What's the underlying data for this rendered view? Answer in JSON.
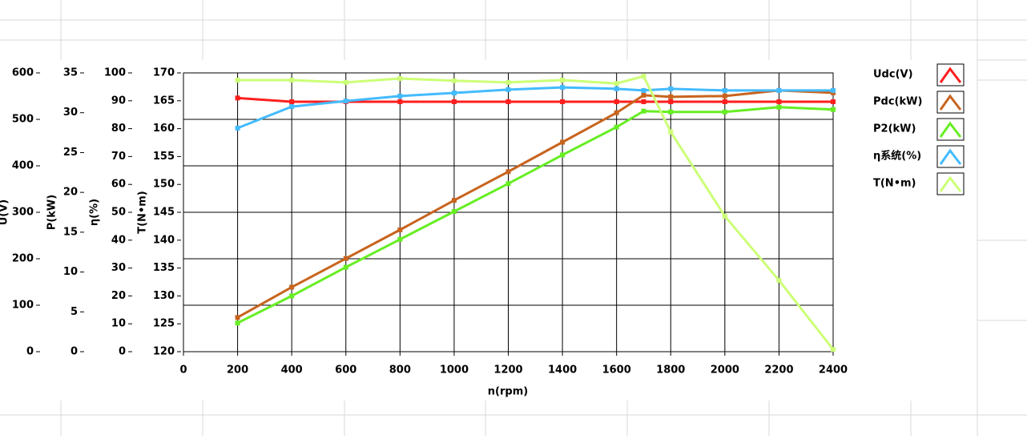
{
  "chart_data": {
    "type": "line",
    "x_label": "n(rpm)",
    "x": [
      200,
      400,
      600,
      800,
      1000,
      1200,
      1400,
      1600,
      1700,
      1800,
      2000,
      2200,
      2400
    ],
    "xlim": [
      0,
      2400
    ],
    "xticks": [
      0,
      200,
      400,
      600,
      800,
      1000,
      1200,
      1400,
      1600,
      1800,
      2000,
      2200,
      2400
    ],
    "y_axes": [
      {
        "label": "U(V)",
        "lim": [
          0,
          600
        ],
        "ticks": [
          0,
          100,
          200,
          300,
          400,
          500,
          600
        ]
      },
      {
        "label": "P(kW)",
        "lim": [
          0,
          35
        ],
        "ticks": [
          0,
          5,
          10,
          15,
          20,
          25,
          30,
          35
        ]
      },
      {
        "label": "η(%)",
        "lim": [
          0,
          100
        ],
        "ticks": [
          0,
          10,
          20,
          30,
          40,
          50,
          60,
          70,
          80,
          90,
          100
        ]
      },
      {
        "label": "T(N•m)",
        "lim": [
          120,
          170
        ],
        "ticks": [
          120,
          125,
          130,
          135,
          140,
          145,
          150,
          155,
          160,
          165,
          170
        ]
      }
    ],
    "grid": true,
    "series": [
      {
        "name": "Udc(V)",
        "color": "#ff1e1e",
        "axis": 0,
        "values": [
          546,
          538,
          538,
          538,
          538,
          538,
          538,
          538,
          538,
          538,
          538,
          538,
          538
        ]
      },
      {
        "name": "Pdc(kW)",
        "color": "#c8641e",
        "axis": 1,
        "values": [
          4.3,
          8.1,
          11.7,
          15.3,
          19.0,
          22.6,
          26.3,
          30.0,
          32.2,
          32.0,
          32.1,
          32.8,
          32.5
        ]
      },
      {
        "name": "P2(kW)",
        "color": "#66ee22",
        "axis": 1,
        "values": [
          3.6,
          7.0,
          10.6,
          14.1,
          17.6,
          21.1,
          24.7,
          28.2,
          30.2,
          30.1,
          30.1,
          30.7,
          30.4
        ]
      },
      {
        "name": "η系统(%)",
        "color": "#44bbff",
        "axis": 2,
        "values": [
          80.2,
          87.9,
          89.9,
          91.7,
          92.8,
          94.0,
          94.8,
          94.3,
          93.7,
          94.3,
          93.7,
          93.7,
          93.7
        ]
      },
      {
        "name": "T(N•m)",
        "color": "#ccff77",
        "axis": 3,
        "values": [
          168.7,
          168.7,
          168.3,
          169.0,
          168.6,
          168.3,
          168.7,
          168.1,
          169.4,
          159.4,
          144.3,
          132.8,
          120.4
        ]
      }
    ]
  }
}
